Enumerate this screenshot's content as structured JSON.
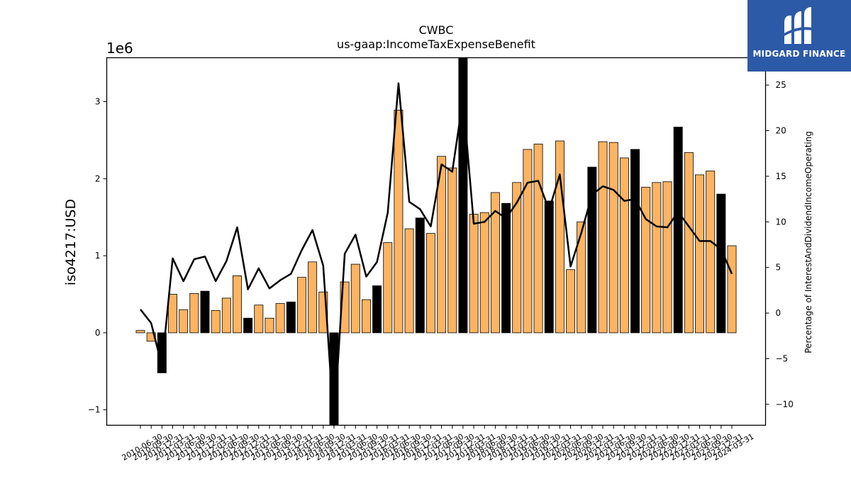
{
  "logo": {
    "text": "MIDGARD FINANCE",
    "icon": "midgard-logo-icon"
  },
  "colors": {
    "bar": "#fdb462",
    "bar_highlight": "#000000",
    "line": "#000000"
  },
  "chart_data": {
    "type": "bar",
    "title": "CWBC",
    "subtitle": "us-gaap:IncomeTaxExpenseBenefit",
    "ylabel": "iso4217:USD",
    "y_offset_label": "1e6",
    "y2label": "Percentage of InterestAndDividendIncomeOperating",
    "ylim": [
      -1.2,
      3.57
    ],
    "y2lim": [
      -12.3,
      28.0
    ],
    "yticks": [
      -1,
      0,
      1,
      2,
      3
    ],
    "y2ticks": [
      -10,
      -5,
      0,
      5,
      10,
      15,
      20,
      25
    ],
    "categories": [
      "2010-06-30",
      "2010-09-30",
      "2010-12-31",
      "2011-03-31",
      "2011-06-30",
      "2011-09-30",
      "2011-12-31",
      "2012-03-31",
      "2012-06-30",
      "2012-09-30",
      "2012-12-31",
      "2013-03-31",
      "2013-06-30",
      "2013-09-30",
      "2013-12-31",
      "2014-03-31",
      "2014-06-30",
      "2014-09-30",
      "2014-12-31",
      "2015-03-31",
      "2015-06-30",
      "2015-09-30",
      "2015-12-31",
      "2016-03-31",
      "2016-06-30",
      "2016-09-30",
      "2016-12-31",
      "2017-03-31",
      "2017-06-30",
      "2017-09-30",
      "2017-12-31",
      "2018-03-31",
      "2018-06-30",
      "2018-09-30",
      "2018-12-31",
      "2019-03-31",
      "2019-06-30",
      "2019-09-30",
      "2019-12-31",
      "2020-03-31",
      "2020-06-30",
      "2020-09-30",
      "2020-12-31",
      "2021-03-31",
      "2021-06-30",
      "2021-09-30",
      "2021-12-31",
      "2022-03-31",
      "2022-06-30",
      "2022-09-30",
      "2022-12-31",
      "2023-03-31",
      "2023-06-30",
      "2023-09-30",
      "2023-12-31",
      "2024-03-31"
    ],
    "series": [
      {
        "type": "bar",
        "values": [
          0.03,
          -0.11,
          -0.52,
          0.5,
          0.3,
          0.51,
          0.54,
          0.29,
          0.45,
          0.74,
          0.19,
          0.36,
          0.19,
          0.38,
          0.4,
          0.72,
          0.92,
          0.53,
          -1.2,
          0.66,
          0.89,
          0.43,
          0.61,
          1.17,
          2.89,
          1.35,
          1.49,
          1.29,
          2.29,
          2.14,
          3.57,
          1.54,
          1.56,
          1.82,
          1.68,
          1.95,
          2.38,
          2.45,
          1.71,
          2.49,
          0.82,
          1.44,
          2.15,
          2.48,
          2.47,
          2.27,
          2.38,
          1.89,
          1.95,
          1.96,
          2.67,
          2.34,
          2.05,
          2.1,
          1.8,
          1.13
        ],
        "highlight": [
          false,
          false,
          true,
          false,
          false,
          false,
          true,
          false,
          false,
          false,
          true,
          false,
          false,
          false,
          true,
          false,
          false,
          false,
          true,
          false,
          false,
          false,
          true,
          false,
          false,
          false,
          true,
          false,
          false,
          false,
          true,
          false,
          false,
          false,
          true,
          false,
          false,
          false,
          true,
          false,
          false,
          false,
          true,
          false,
          false,
          false,
          true,
          false,
          false,
          false,
          true,
          false,
          false,
          false,
          true,
          false
        ]
      },
      {
        "type": "line",
        "axis": "y2",
        "values": [
          0.4,
          -1.1,
          -5.8,
          6.0,
          3.5,
          5.9,
          6.2,
          3.5,
          5.7,
          9.4,
          2.6,
          4.9,
          2.7,
          3.6,
          4.3,
          6.9,
          9.1,
          5.2,
          -12.3,
          6.5,
          8.6,
          4.0,
          5.6,
          11.0,
          25.2,
          12.2,
          11.4,
          9.5,
          16.3,
          15.5,
          23.5,
          9.8,
          10.0,
          11.2,
          10.4,
          12.1,
          14.3,
          14.5,
          11.3,
          15.2,
          5.1,
          8.8,
          13.0,
          13.9,
          13.5,
          12.3,
          12.5,
          10.3,
          9.5,
          9.4,
          11.1,
          9.5,
          7.9,
          7.9,
          7.0,
          4.3
        ]
      }
    ]
  }
}
